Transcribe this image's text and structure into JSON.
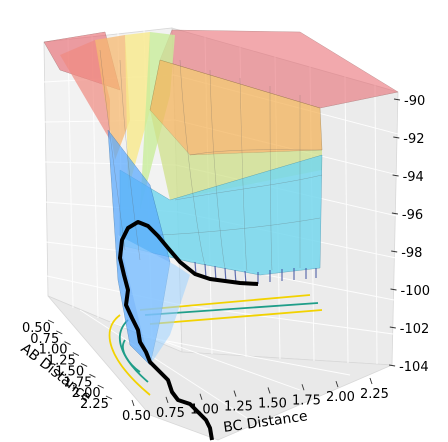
{
  "chart_data": {
    "type": "surface",
    "title": "",
    "xlabel": "BC Distance",
    "ylabel": "AB Distance",
    "zlabel": "",
    "x_ticks": [
      "0.50",
      "0.75",
      "1.00",
      "1.25",
      "1.50",
      "1.75",
      "2.00",
      "2.25"
    ],
    "y_ticks": [
      "0.50",
      "0.75",
      "1.00",
      "1.25",
      "1.50",
      "1.75",
      "2.00",
      "2.25"
    ],
    "z_ticks": [
      "-90",
      "-92",
      "-94",
      "-96",
      "-98",
      "-100",
      "-102",
      "-104"
    ],
    "zlim": [
      -104,
      -90
    ],
    "grid": true,
    "colormap": [
      "#e8636b",
      "#f6a04d",
      "#f7e06a",
      "#b5e68c",
      "#7ed6e6",
      "#56b4ff"
    ],
    "path_color": "#000000",
    "contour_colors": [
      "#f2d200",
      "#1f9e89"
    ]
  }
}
